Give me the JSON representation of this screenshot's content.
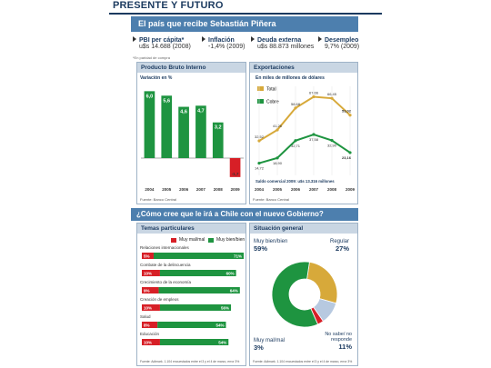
{
  "header": {
    "title": "PRESENTE Y FUTURO",
    "banner": "El país que recibe Sebastián Piñera",
    "note": "*En paridad de compra"
  },
  "stats": [
    {
      "label": "PBI per cápita*",
      "value": "u$s 14.688 (2008)"
    },
    {
      "label": "Inflación",
      "value": "-1,4% (2009)"
    },
    {
      "label": "Deuda externa",
      "value": "u$s 88.873 millones"
    },
    {
      "label": "Desempleo",
      "value": "9,7% (2009)"
    }
  ],
  "colors": {
    "navy": "#1b3a5f",
    "blue": "#4d7fae",
    "green": "#1e9440",
    "red": "#d71f26",
    "gold": "#d7a93a",
    "lightblue": "#b7c9e0"
  },
  "chart_data": [
    {
      "type": "bar",
      "title": "Producto Bruto Interno",
      "subtitle": "Variación en %",
      "categories": [
        "2004",
        "2005",
        "2006",
        "2007",
        "2008",
        "2009"
      ],
      "values": [
        6.0,
        5.6,
        4.6,
        4.7,
        3.2,
        -1.7
      ],
      "value_labels": [
        "6,0",
        "5,6",
        "4,6",
        "4,7",
        "3,2",
        "-1,7"
      ],
      "ylim": [
        -2.2,
        6.6
      ],
      "source": "Fuente: Banco Central"
    },
    {
      "type": "line",
      "title": "Exportaciones",
      "subtitle": "En miles de millones de dólares",
      "categories": [
        "2004",
        "2005",
        "2006",
        "2007",
        "2008",
        "2009"
      ],
      "series": [
        {
          "name": "Total",
          "values": [
            32.52,
            41.26,
            58.68,
            67.66,
            66.45,
            53.02
          ],
          "value_labels": [
            "32,52",
            "41,26",
            "58,68",
            "67,66",
            "66,45",
            "53,02"
          ],
          "color": "#d7a93a"
        },
        {
          "name": "Cobre",
          "values": [
            14.72,
            18.9,
            32.71,
            37.58,
            32.9,
            23.16
          ],
          "value_labels": [
            "14,72",
            "18,90",
            "32,71",
            "37,58",
            "32,90",
            "23,16"
          ],
          "color": "#1e9440"
        }
      ],
      "ylim": [
        5,
        76
      ],
      "footnote": "Saldo comercial 2009: u$s 13.316 millones",
      "source": "Fuente: Banco Central"
    },
    {
      "type": "bar",
      "title": "Temas particulares",
      "legend": [
        "Muy mal/mal",
        "Muy bien/bien"
      ],
      "categories": [
        "Relaciones internacionales",
        "Combate de la delincuencia",
        "Crecimiento de la economía",
        "Creación de empleos",
        "Salud",
        "Educación"
      ],
      "series": [
        {
          "name": "Muy mal/mal",
          "values": [
            5,
            10,
            9,
            10,
            8,
            10
          ],
          "value_labels": [
            "5%",
            "10%",
            "9%",
            "10%",
            "8%",
            "10%"
          ],
          "color": "#d71f26"
        },
        {
          "name": "Muy bien/bien",
          "values": [
            71,
            60,
            64,
            56,
            54,
            54
          ],
          "value_labels": [
            "71%",
            "60%",
            "64%",
            "56%",
            "54%",
            "54%"
          ],
          "color": "#1e9440"
        }
      ],
      "source": "Fuente: Adimark. 1.104 encuestados entre el 3 y el 4 de marzo, error 3%"
    },
    {
      "type": "pie",
      "title": "Situación general",
      "slices": [
        {
          "label": "Muy bien/bien",
          "value": 59,
          "value_label": "59%",
          "color": "#1e9440"
        },
        {
          "label": "Regular",
          "value": 27,
          "value_label": "27%",
          "color": "#d7a93a"
        },
        {
          "label": "No sabe/ no responde",
          "value": 11,
          "value_label": "11%",
          "color": "#b7c9e0"
        },
        {
          "label": "Muy mal/mal",
          "value": 3,
          "value_label": "3%",
          "color": "#d71f26"
        }
      ],
      "source": "Fuente: Adimark. 1.104 encuestados entre el 3 y el 4 de marzo, error 3%"
    }
  ],
  "question": "¿Cómo cree que le irá a Chile con el nuevo Gobierno?"
}
